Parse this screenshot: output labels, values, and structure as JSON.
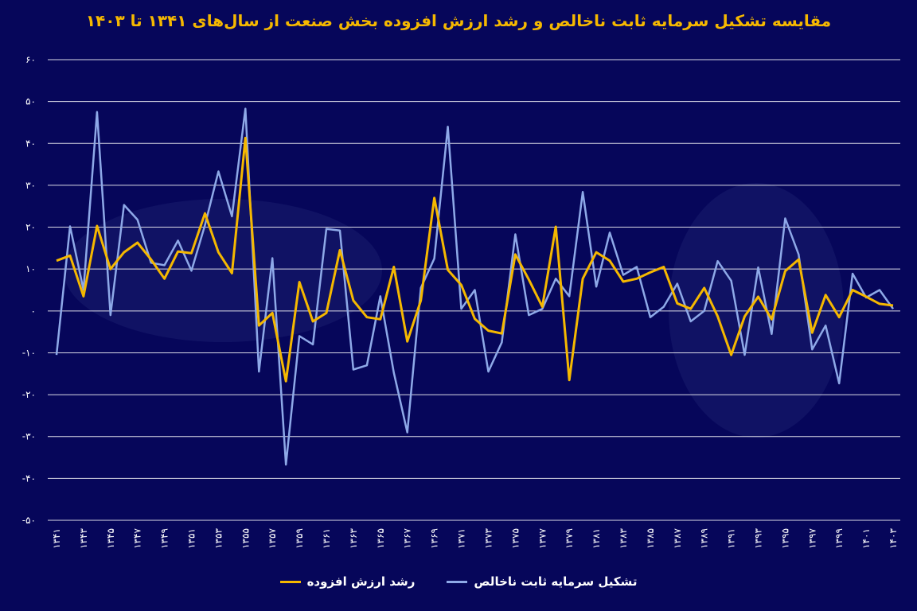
{
  "chart_data": {
    "type": "line",
    "title": "مقایسه تشکیل سرمایه ثابت ناخالص و رشد ارزش افزوده بخش صنعت از سال‌های ۱۳۴۱ تا ۱۴۰۳",
    "ylim": [
      -50,
      60
    ],
    "yticks": [
      "۶۰",
      "۵۰",
      "۴۰",
      "۳۰",
      "۲۰",
      "۱۰",
      "۰",
      "-۱۰",
      "-۲۰",
      "-۳۰",
      "-۴۰",
      "-۵۰"
    ],
    "x": [
      "۱۳۴۱",
      "۱۳۴۲",
      "۱۳۴۳",
      "۱۳۴۴",
      "۱۳۴۵",
      "۱۳۴۶",
      "۱۳۴۷",
      "۱۳۴۸",
      "۱۳۴۹",
      "۱۳۵۰",
      "۱۳۵۱",
      "۱۳۵۲",
      "۱۳۵۳",
      "۱۳۵۴",
      "۱۳۵۵",
      "۱۳۵۶",
      "۱۳۵۷",
      "۱۳۵۸",
      "۱۳۵۹",
      "۱۳۶۰",
      "۱۳۶۱",
      "۱۳۶۲",
      "۱۳۶۳",
      "۱۳۶۴",
      "۱۳۶۵",
      "۱۳۶۶",
      "۱۳۶۷",
      "۱۳۶۸",
      "۱۳۶۹",
      "۱۳۷۰",
      "۱۳۷۱",
      "۱۳۷۲",
      "۱۳۷۳",
      "۱۳۷۴",
      "۱۳۷۵",
      "۱۳۷۶",
      "۱۳۷۷",
      "۱۳۷۸",
      "۱۳۷۹",
      "۱۳۸۰",
      "۱۳۸۱",
      "۱۳۸۲",
      "۱۳۸۳",
      "۱۳۸۴",
      "۱۳۸۵",
      "۱۳۸۶",
      "۱۳۸۷",
      "۱۳۸۸",
      "۱۳۸۹",
      "۱۳۹۰",
      "۱۳۹۱",
      "۱۳۹۲",
      "۱۳۹۳",
      "۱۳۹۴",
      "۱۳۹۵",
      "۱۳۹۶",
      "۱۳۹۷",
      "۱۳۹۸",
      "۱۳۹۹",
      "۱۴۰۰",
      "۱۴۰۱",
      "۱۴۰۲",
      "۱۴۰۳"
    ],
    "xtick_labels": [
      "۱۳۴۱",
      "",
      "۱۳۴۳",
      "",
      "۱۳۴۵",
      "",
      "۱۳۴۷",
      "",
      "۱۳۴۹",
      "",
      "۱۳۵۱",
      "",
      "۱۳۵۳",
      "",
      "۱۳۵۵",
      "",
      "۱۳۵۷",
      "",
      "۱۳۵۹",
      "",
      "۱۳۶۱",
      "",
      "۱۳۶۳",
      "",
      "۱۳۶۵",
      "",
      "۱۳۶۷",
      "",
      "۱۳۶۹",
      "",
      "۱۳۷۱",
      "",
      "۱۳۷۳",
      "",
      "۱۳۷۵",
      "",
      "۱۳۷۷",
      "",
      "۱۳۷۹",
      "",
      "۱۳۸۱",
      "",
      "۱۳۸۳",
      "",
      "۱۳۸۵",
      "",
      "۱۳۸۷",
      "",
      "۱۳۸۹",
      "",
      "۱۳۹۱",
      "",
      "۱۳۹۳",
      "",
      "۱۳۹۵",
      "",
      "۱۳۹۷",
      "",
      "۱۳۹۹",
      "",
      "۱۴۰۱",
      "",
      "۱۴۰۳"
    ],
    "series": [
      {
        "name": "تشکیل سرمایه ثابت ناخالص",
        "color": "#8ea9e8",
        "values": [
          -10.5,
          20.2,
          5.0,
          47.5,
          -1.0,
          25.3,
          21.8,
          11.5,
          10.9,
          16.8,
          9.6,
          20.5,
          33.3,
          22.6,
          48.3,
          -14.5,
          12.6,
          -36.7,
          -6.0,
          -8.0,
          19.6,
          19.2,
          -14.0,
          -13.0,
          3.5,
          -14.8,
          -29.0,
          5.5,
          12.5,
          44.0,
          0.5,
          5.0,
          -14.5,
          -7.5,
          18.3,
          -1.0,
          0.5,
          7.7,
          3.5,
          28.4,
          5.8,
          18.7,
          8.6,
          10.5,
          -1.5,
          1.0,
          6.5,
          -2.5,
          0.0,
          11.9,
          7.2,
          -10.5,
          10.4,
          -5.5,
          22.1,
          13.5,
          -9.2,
          -3.5,
          -17.3,
          8.9,
          3.2,
          5.0,
          0.5
        ]
      },
      {
        "name": "رشد ارزش افزوده",
        "color": "#f5b800",
        "values": [
          12.0,
          13.2,
          3.5,
          20.3,
          10.0,
          14.0,
          16.3,
          12.3,
          7.7,
          14.2,
          13.8,
          23.3,
          14.0,
          9.0,
          41.3,
          -3.5,
          -0.5,
          -16.8,
          6.9,
          -2.5,
          -0.5,
          14.5,
          2.5,
          -1.5,
          -2.0,
          10.5,
          -7.3,
          2.5,
          27.0,
          9.8,
          6.2,
          -1.9,
          -4.7,
          -5.4,
          13.5,
          7.5,
          1.0,
          20.1,
          -16.5,
          7.7,
          14.0,
          12.0,
          7.0,
          7.7,
          9.2,
          10.5,
          1.8,
          0.5,
          5.5,
          -1.3,
          -10.5,
          -1.3,
          3.4,
          -2.0,
          9.5,
          12.3,
          -5.2,
          3.8,
          -1.5,
          5.0,
          3.4,
          1.7,
          1.3
        ]
      }
    ],
    "legend": [
      "تشکیل سرمایه ثابت ناخالص",
      "رشد ارزش افزوده"
    ],
    "legend_position": "bottom",
    "grid": true
  }
}
